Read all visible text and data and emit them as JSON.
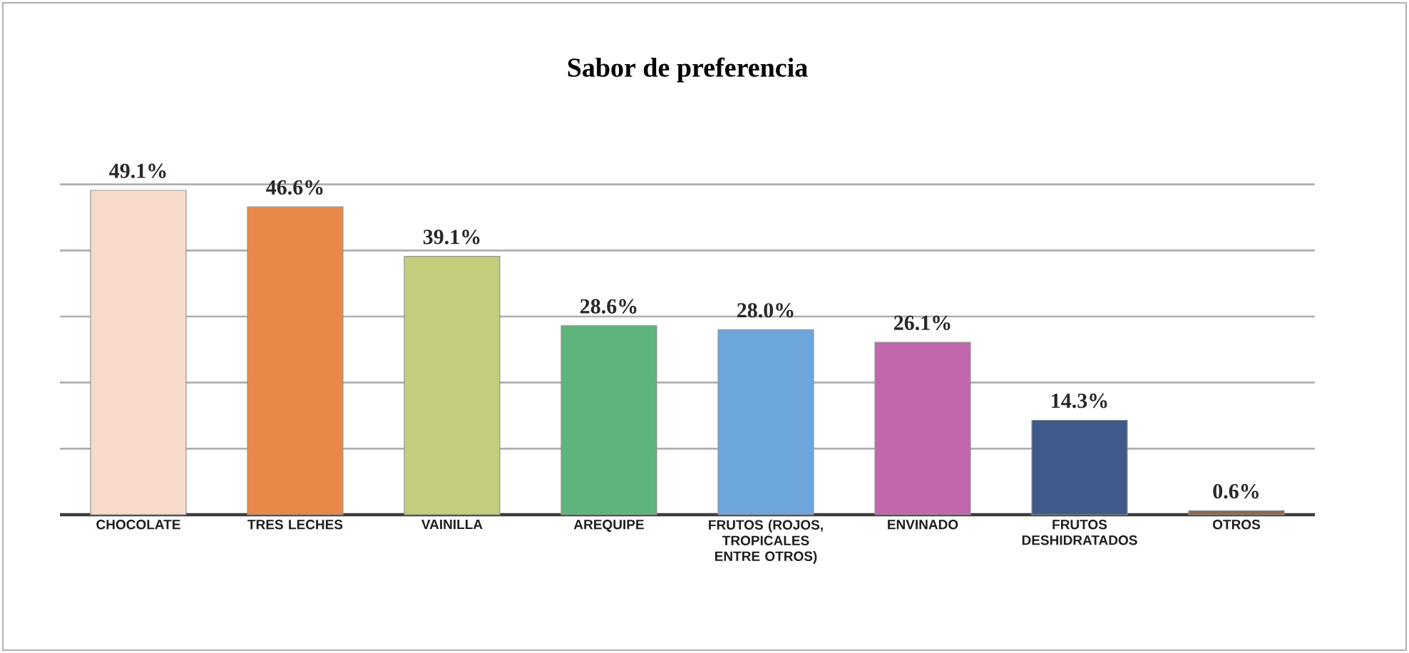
{
  "chart_data": {
    "type": "bar",
    "title": "Sabor de preferencia",
    "categories": [
      "CHOCOLATE",
      "TRES LECHES",
      "VAINILLA",
      "AREQUIPE",
      "FRUTOS (ROJOS, TROPICALES ENTRE OTROS)",
      "ENVINADO",
      "FRUTOS DESHIDRATADOS",
      "OTROS"
    ],
    "values": [
      49.1,
      46.6,
      39.1,
      28.6,
      28.0,
      26.1,
      14.3,
      0.6
    ],
    "value_labels": [
      "49.1%",
      "46.6%",
      "39.1%",
      "28.6%",
      "28.0%",
      "26.1%",
      "14.3%",
      "0.6%"
    ],
    "colors": [
      "#f8dacb",
      "#e8894a",
      "#c3cd7b",
      "#5db57b",
      "#6ca6da",
      "#c266ae",
      "#3d5a8a",
      "#8a6a50"
    ],
    "grid": "y",
    "tick_labels": "x"
  }
}
